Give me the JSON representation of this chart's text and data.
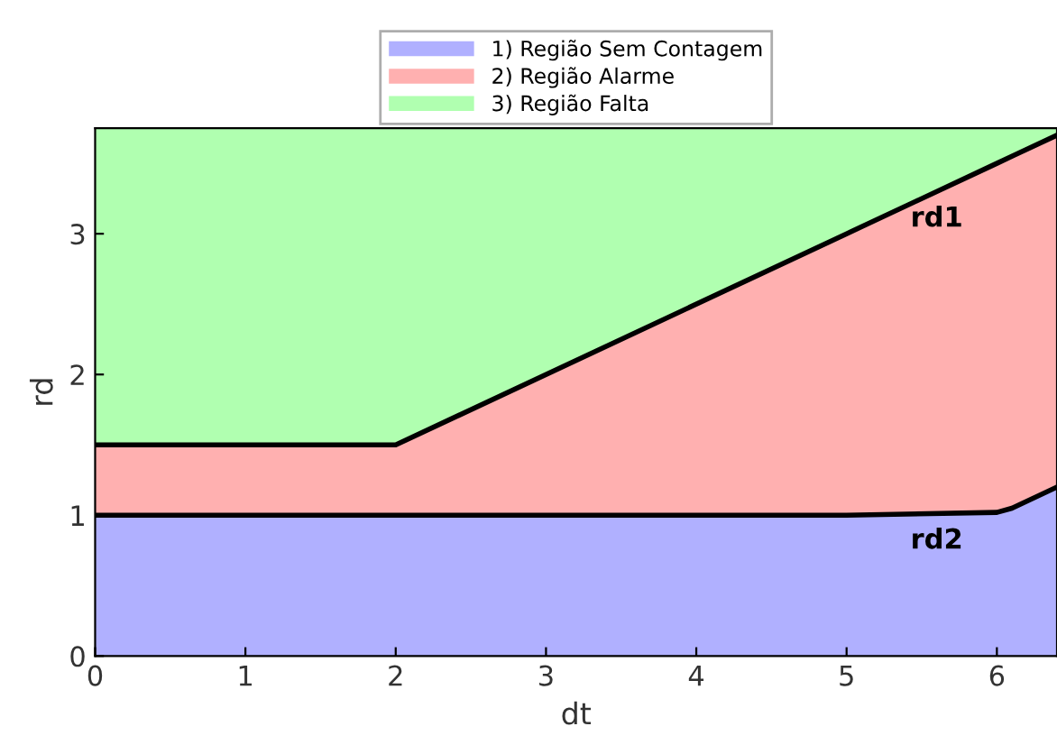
{
  "chart_data": {
    "type": "area",
    "stacked": true,
    "xlabel": "dt",
    "ylabel": "rd",
    "x": [
      0,
      2,
      5,
      6,
      6.1,
      6.4
    ],
    "series": [
      {
        "name": "1) Região Sem Contagem",
        "color": "#b0b0ff",
        "values": [
          1,
          1,
          1,
          1.02,
          1.05,
          1.2
        ]
      },
      {
        "name": "2) Região Alarme",
        "color": "#ffb0b0",
        "values": [
          0.5,
          0.5,
          2.0,
          2.48,
          2.5,
          2.5
        ]
      },
      {
        "name": "3) Região Falta",
        "color": "#b0ffb0",
        "values": [
          2.25,
          2.25,
          0.75,
          0.25,
          0.2,
          0.05
        ]
      }
    ],
    "xlim": [
      0,
      6.4
    ],
    "ylim": [
      0,
      3.75
    ],
    "xticks": [
      0,
      1,
      2,
      3,
      4,
      5,
      6
    ],
    "yticks": [
      0,
      1,
      2,
      3
    ],
    "grid": false,
    "legend": "top",
    "annotations": [
      "rd1",
      "rd2"
    ]
  }
}
